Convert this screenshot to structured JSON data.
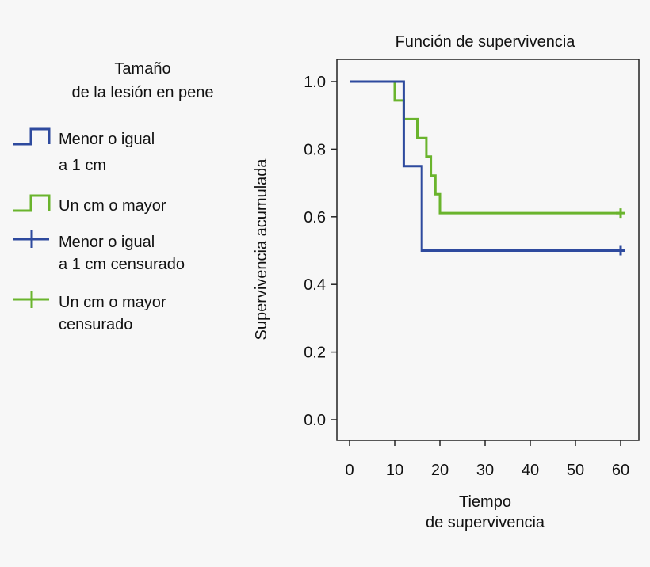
{
  "chart_data": {
    "type": "line",
    "step": true,
    "title": "Función de supervivencia",
    "xlabel": [
      "Tiempo",
      "de supervivencia"
    ],
    "ylabel": "Supervivencia acumulada",
    "xlim": [
      0,
      60
    ],
    "ylim": [
      0,
      1
    ],
    "xticks": [
      0,
      10,
      20,
      30,
      40,
      50,
      60
    ],
    "yticks": [
      "0.0",
      "0.2",
      "0.4",
      "0.6",
      "0.8",
      "1.0"
    ],
    "grid": false,
    "legend": {
      "placement": "left",
      "title": [
        "Tamaño",
        "de la lesión en pene"
      ],
      "entries": [
        {
          "label": [
            "Menor o igual",
            "a 1 cm"
          ],
          "marker": "step",
          "color": "#2e4a9e"
        },
        {
          "label": [
            "Un cm o mayor"
          ],
          "marker": "step",
          "color": "#6ab42d"
        },
        {
          "label": [
            "Menor o igual",
            "a 1 cm censurado"
          ],
          "marker": "cross",
          "color": "#2e4a9e"
        },
        {
          "label": [
            "Un cm o mayor",
            "censurado"
          ],
          "marker": "cross",
          "color": "#6ab42d"
        }
      ]
    },
    "series": [
      {
        "name": "Un cm o mayor",
        "color": "#6ab42d",
        "steps": [
          [
            0,
            1.0
          ],
          [
            10,
            0.944
          ],
          [
            12,
            0.889
          ],
          [
            15,
            0.833
          ],
          [
            17,
            0.778
          ],
          [
            18,
            0.722
          ],
          [
            19,
            0.667
          ],
          [
            20,
            0.611
          ]
        ],
        "end": 60,
        "censored": [
          [
            60,
            0.611
          ]
        ]
      },
      {
        "name": "Menor o igual a 1 cm",
        "color": "#2e4a9e",
        "steps": [
          [
            0,
            1.0
          ],
          [
            12,
            0.75
          ],
          [
            16,
            0.5
          ]
        ],
        "end": 60,
        "censored": [
          [
            60,
            0.5
          ]
        ]
      }
    ]
  }
}
